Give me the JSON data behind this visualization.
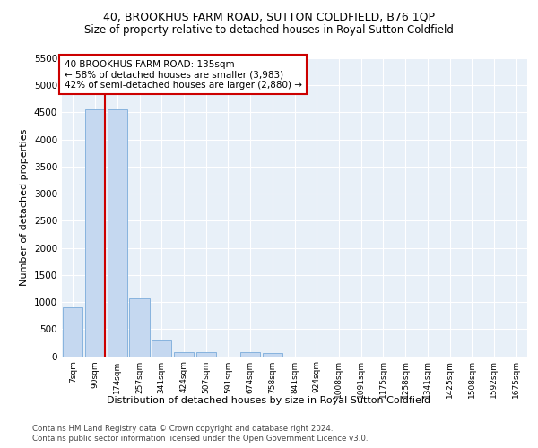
{
  "title": "40, BROOKHUS FARM ROAD, SUTTON COLDFIELD, B76 1QP",
  "subtitle": "Size of property relative to detached houses in Royal Sutton Coldfield",
  "xlabel": "Distribution of detached houses by size in Royal Sutton Coldfield",
  "ylabel": "Number of detached properties",
  "footnote1": "Contains HM Land Registry data © Crown copyright and database right 2024.",
  "footnote2": "Contains public sector information licensed under the Open Government Licence v3.0.",
  "bar_labels": [
    "7sqm",
    "90sqm",
    "174sqm",
    "257sqm",
    "341sqm",
    "424sqm",
    "507sqm",
    "591sqm",
    "674sqm",
    "758sqm",
    "841sqm",
    "924sqm",
    "1008sqm",
    "1091sqm",
    "1175sqm",
    "1258sqm",
    "1341sqm",
    "1425sqm",
    "1508sqm",
    "1592sqm",
    "1675sqm"
  ],
  "bar_values": [
    900,
    4560,
    4560,
    1060,
    290,
    80,
    70,
    0,
    70,
    60,
    0,
    0,
    0,
    0,
    0,
    0,
    0,
    0,
    0,
    0,
    0
  ],
  "bar_color": "#c5d8f0",
  "bar_edge_color": "#7aabda",
  "vline_x_index": 1,
  "vline_color": "#cc0000",
  "ylim": [
    0,
    5500
  ],
  "yticks": [
    0,
    500,
    1000,
    1500,
    2000,
    2500,
    3000,
    3500,
    4000,
    4500,
    5000,
    5500
  ],
  "annotation_text": "40 BROOKHUS FARM ROAD: 135sqm\n← 58% of detached houses are smaller (3,983)\n42% of semi-detached houses are larger (2,880) →",
  "annotation_box_facecolor": "#ffffff",
  "annotation_box_edgecolor": "#cc0000",
  "plot_bg_color": "#e8f0f8",
  "fig_bg_color": "#ffffff",
  "title_fontsize": 9,
  "subtitle_fontsize": 8.5,
  "ylabel_fontsize": 8,
  "xlabel_fontsize": 8,
  "ytick_fontsize": 7.5,
  "xtick_fontsize": 6.5,
  "annotation_fontsize": 7.5,
  "footnote_fontsize": 6.2
}
